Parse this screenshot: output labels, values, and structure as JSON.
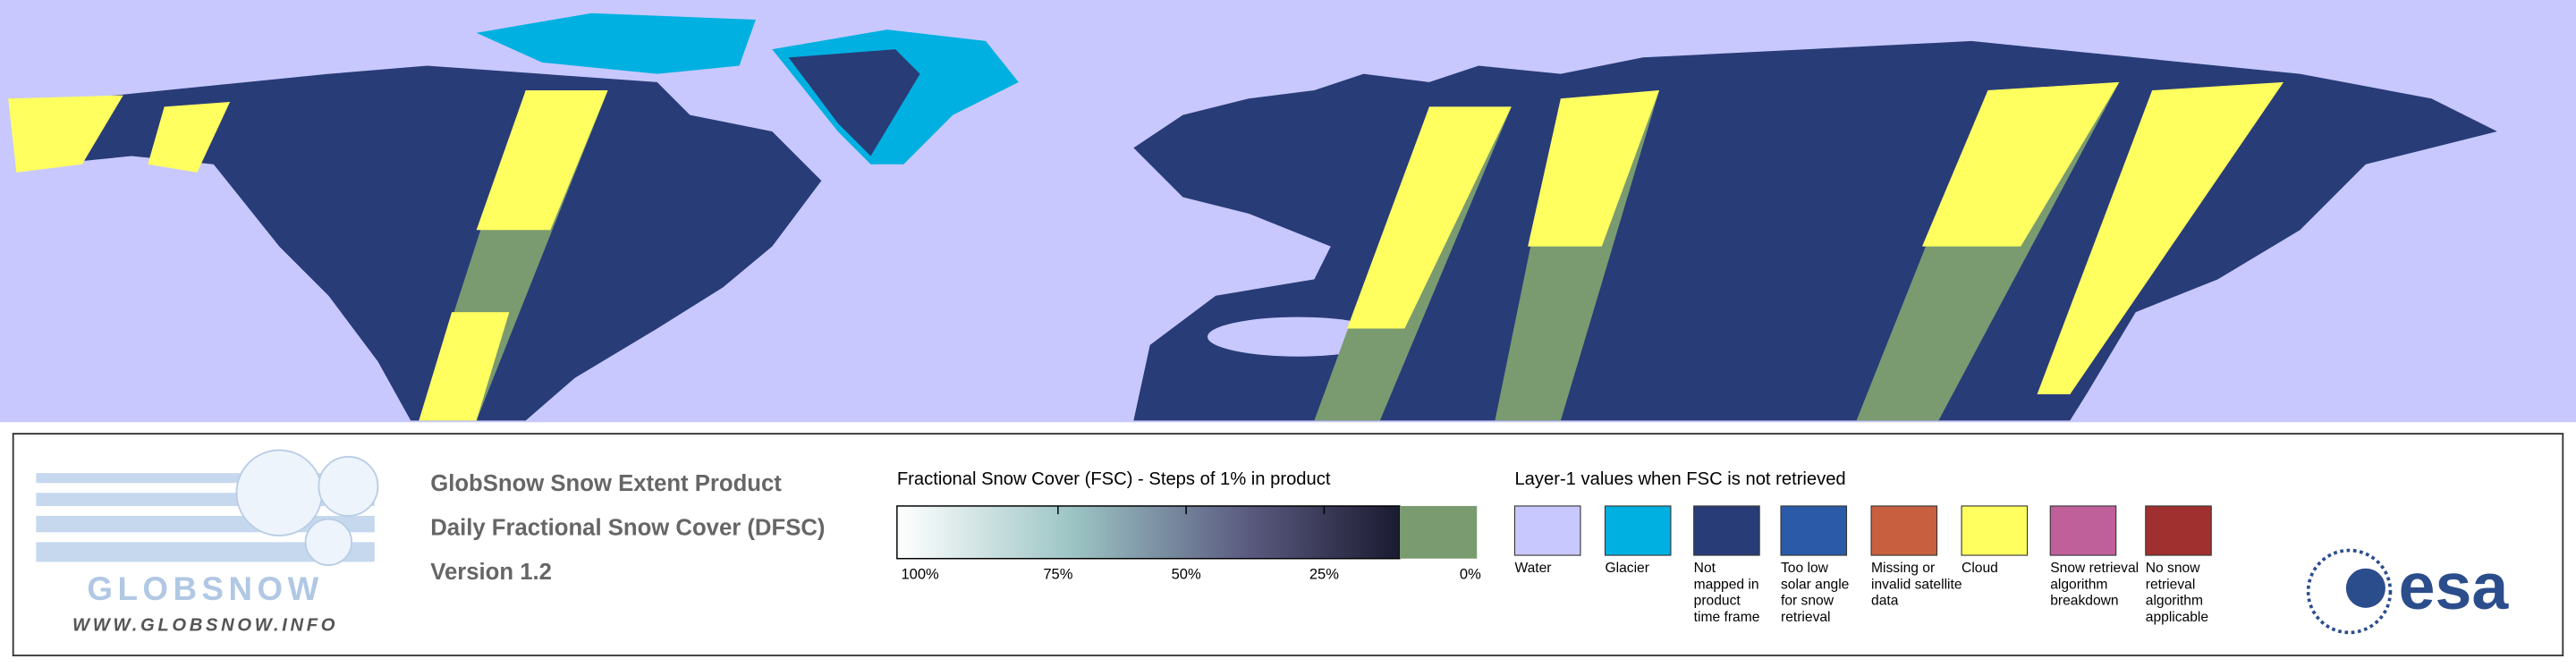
{
  "header": {
    "title": "GlobSnow Snow Extent Product",
    "subtitle": "Daily Fractional Snow Cover (DFSC)",
    "version": "Version 1.2"
  },
  "logo": {
    "name": "GLOBSNOW",
    "url": "WWW.GLOBSNOW.INFO",
    "agency": "esa"
  },
  "colorbar": {
    "title": "Fractional Snow Cover (FSC) - Steps of 1% in product",
    "ticks": [
      "100%",
      "75%",
      "50%",
      "25%",
      "0%"
    ]
  },
  "legend": {
    "title": "Layer-1 values when FSC is not retrieved",
    "items": [
      {
        "label": [
          "Water"
        ],
        "color": "#c8c8ff"
      },
      {
        "label": [
          "Glacier"
        ],
        "color": "#00b0e0"
      },
      {
        "label": [
          "Not",
          "mapped in",
          "product",
          "time frame"
        ],
        "color": "#283c78"
      },
      {
        "label": [
          "Too low",
          "solar angle",
          "for snow",
          "retrieval"
        ],
        "color": "#2a5aa8"
      },
      {
        "label": [
          "Missing or",
          "invalid satellite",
          "data"
        ],
        "color": "#c86040"
      },
      {
        "label": [
          "Cloud"
        ],
        "color": "#ffff60"
      },
      {
        "label": [
          "Snow retrieval",
          "algorithm",
          "breakdown"
        ],
        "color": "#c0609a"
      },
      {
        "label": [
          "No snow",
          "retrieval",
          "algorithm",
          "applicable"
        ],
        "color": "#a03030"
      }
    ]
  }
}
